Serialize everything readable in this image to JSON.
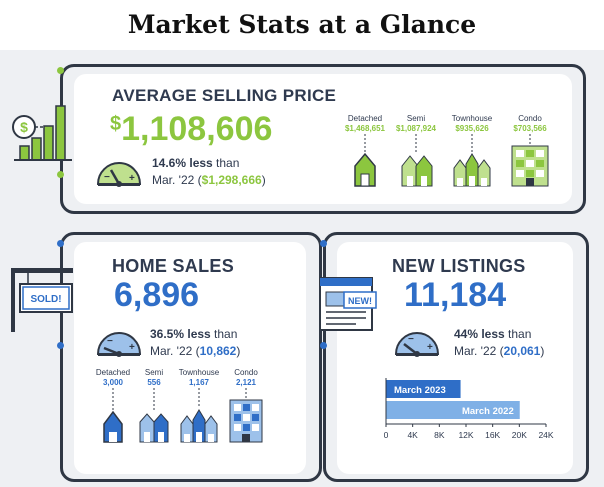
{
  "page": {
    "title": "Market Stats at a Glance"
  },
  "colors": {
    "green": "#8cc63f",
    "green_light": "#bfe08e",
    "blue": "#2f6ec7",
    "blue_light": "#9dc1ea",
    "dark": "#2f3a4f",
    "bracket": "#2f3744",
    "background": "#eef0f3"
  },
  "icons": {
    "price": "dollar-bar-chart-icon",
    "sales": "sold-sign-icon",
    "listings": "new-listing-document-icon",
    "gauge": "speedometer-gauge-icon",
    "house": "house-icon",
    "building": "condo-building-icon"
  },
  "average_price": {
    "heading": "AVERAGE SELLING PRICE",
    "value": "$1,108,606",
    "value_symbol": "$",
    "value_number": "1,108,606",
    "percent": "14.6% less",
    "than": " than",
    "period": "Mar. '22 (",
    "prev_value": "$1,298,666",
    "period_close": ")",
    "types": [
      {
        "label": "Detached",
        "value": "$1,468,651"
      },
      {
        "label": "Semi",
        "value": "$1,087,924"
      },
      {
        "label": "Townhouse",
        "value": "$935,626"
      },
      {
        "label": "Condo",
        "value": "$703,566"
      }
    ]
  },
  "home_sales": {
    "heading": "HOME SALES",
    "sign_text": "SOLD!",
    "value": "6,896",
    "percent": "36.5% less",
    "than": " than",
    "period": "Mar. '22 (",
    "prev_value": "10,862",
    "period_close": ")",
    "types": [
      {
        "label": "Detached",
        "value": "3,000"
      },
      {
        "label": "Semi",
        "value": "556"
      },
      {
        "label": "Townhouse",
        "value": "1,167"
      },
      {
        "label": "Condo",
        "value": "2,121"
      }
    ]
  },
  "new_listings": {
    "heading": "NEW LISTINGS",
    "doc_text": "NEW!",
    "value": "11,184",
    "percent": "44% less",
    "than": " than",
    "period": "Mar. '22 (",
    "prev_value": "20,061",
    "period_close": ")"
  },
  "chart_data": {
    "type": "bar",
    "orientation": "horizontal",
    "categories": [
      "March 2023",
      "March 2022"
    ],
    "values": [
      11184,
      20061
    ],
    "title": "",
    "xlabel": "",
    "ylabel": "",
    "xlim": [
      0,
      24000
    ],
    "ticks": [
      "0",
      "4K",
      "8K",
      "12K",
      "16K",
      "20K",
      "24K"
    ],
    "tick_values": [
      0,
      4000,
      8000,
      12000,
      16000,
      20000,
      24000
    ],
    "bar_colors": [
      "#2f6ec7",
      "#7fb0e6"
    ],
    "grid": false,
    "legend": "none"
  }
}
